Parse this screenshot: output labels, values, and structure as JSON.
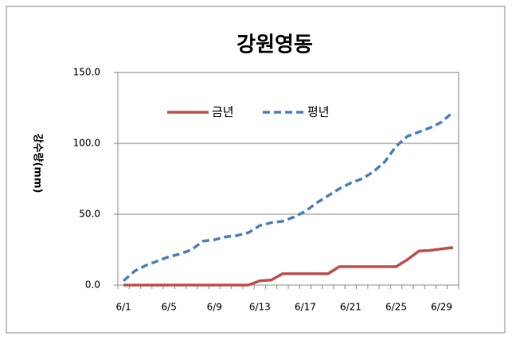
{
  "chart_data": {
    "type": "line",
    "title": "강원영동",
    "y_label": "강수량(mm)",
    "categories": [
      "6/1",
      null,
      null,
      null,
      "6/5",
      null,
      null,
      null,
      "6/9",
      null,
      null,
      null,
      "6/13",
      null,
      null,
      null,
      "6/17",
      null,
      null,
      null,
      "6/21",
      null,
      null,
      null,
      "6/25",
      null,
      null,
      null,
      "6/29",
      null
    ],
    "series": [
      {
        "name": "금년",
        "color": "#c0504d",
        "dash": false,
        "values": [
          0,
          0,
          0,
          0,
          0,
          0,
          0,
          0,
          0,
          0,
          0,
          0,
          3,
          3.5,
          8,
          8,
          8,
          8,
          8,
          13,
          13,
          13,
          13,
          13,
          13,
          18,
          24,
          24.5,
          25.5,
          26.5
        ]
      },
      {
        "name": "평년",
        "color": "#4f81bd",
        "dash": true,
        "values": [
          3,
          10,
          14,
          17,
          20,
          22,
          25,
          31,
          32,
          34,
          35,
          37,
          42,
          44,
          45,
          48,
          52,
          58,
          63,
          68,
          72,
          75,
          80,
          87,
          98,
          105,
          108,
          111,
          115,
          122
        ]
      }
    ],
    "ylim": [
      0,
      150
    ],
    "yticks": [
      {
        "value": 0,
        "label": "0.0"
      },
      {
        "value": 50,
        "label": "50.0"
      },
      {
        "value": 100,
        "label": "100.0"
      },
      {
        "value": 150,
        "label": "150.0"
      }
    ],
    "grid": true,
    "legend": "top-left"
  }
}
